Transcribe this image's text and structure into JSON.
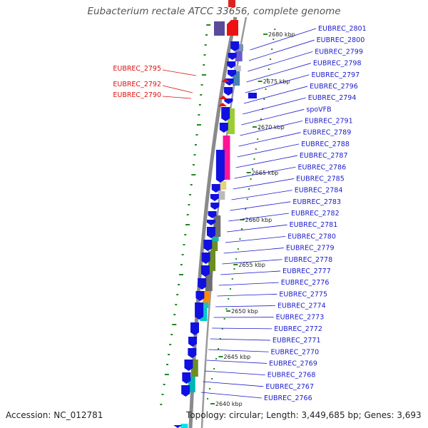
{
  "title": "Eubacterium rectale ATCC 33656, complete genome",
  "footer": {
    "accession": "Accession: NC_012781",
    "topology": "Topology: circular; Length: 3,449,685 bp; Genes: 3,693"
  },
  "colors": {
    "forward_label": "#1a1acc",
    "reverse_label": "#dd1111",
    "gene_forward": "#1010e0",
    "gene_reverse": "#ee1111",
    "backbone": "#888888",
    "gc_skew": "#228822",
    "ruler_tick": "#228822"
  },
  "ruler": [
    {
      "label": "2680 kbp"
    },
    {
      "label": "2675 kbp"
    },
    {
      "label": "2670 kbp"
    },
    {
      "label": "2665 kbp"
    },
    {
      "label": "2660 kbp"
    },
    {
      "label": "2655 kbp"
    },
    {
      "label": "2650 kbp"
    },
    {
      "label": "2645 kbp"
    },
    {
      "label": "2640 kbp"
    }
  ],
  "reverse_genes": [
    {
      "label": "EUBREC_2795"
    },
    {
      "label": "EUBREC_2792"
    },
    {
      "label": "EUBREC_2790"
    }
  ],
  "forward_genes": [
    {
      "label": "EUBREC_2801"
    },
    {
      "label": "EUBREC_2800"
    },
    {
      "label": "EUBREC_2799"
    },
    {
      "label": "EUBREC_2798"
    },
    {
      "label": "EUBREC_2797"
    },
    {
      "label": "EUBREC_2796"
    },
    {
      "label": "EUBREC_2794"
    },
    {
      "label": "spoVFB"
    },
    {
      "label": "EUBREC_2791"
    },
    {
      "label": "EUBREC_2789"
    },
    {
      "label": "EUBREC_2788"
    },
    {
      "label": "EUBREC_2787"
    },
    {
      "label": "EUBREC_2786"
    },
    {
      "label": "EUBREC_2785"
    },
    {
      "label": "EUBREC_2784"
    },
    {
      "label": "EUBREC_2783"
    },
    {
      "label": "EUBREC_2782"
    },
    {
      "label": "EUBREC_2781"
    },
    {
      "label": "EUBREC_2780"
    },
    {
      "label": "EUBREC_2779"
    },
    {
      "label": "EUBREC_2778"
    },
    {
      "label": "EUBREC_2777"
    },
    {
      "label": "EUBREC_2776"
    },
    {
      "label": "EUBREC_2775"
    },
    {
      "label": "EUBREC_2774"
    },
    {
      "label": "EUBREC_2773"
    },
    {
      "label": "EUBREC_2772"
    },
    {
      "label": "EUBREC_2771"
    },
    {
      "label": "EUBREC_2770"
    },
    {
      "label": "EUBREC_2769"
    },
    {
      "label": "EUBREC_2768"
    },
    {
      "label": "EUBREC_2767"
    },
    {
      "label": "EUBREC_2766"
    }
  ]
}
